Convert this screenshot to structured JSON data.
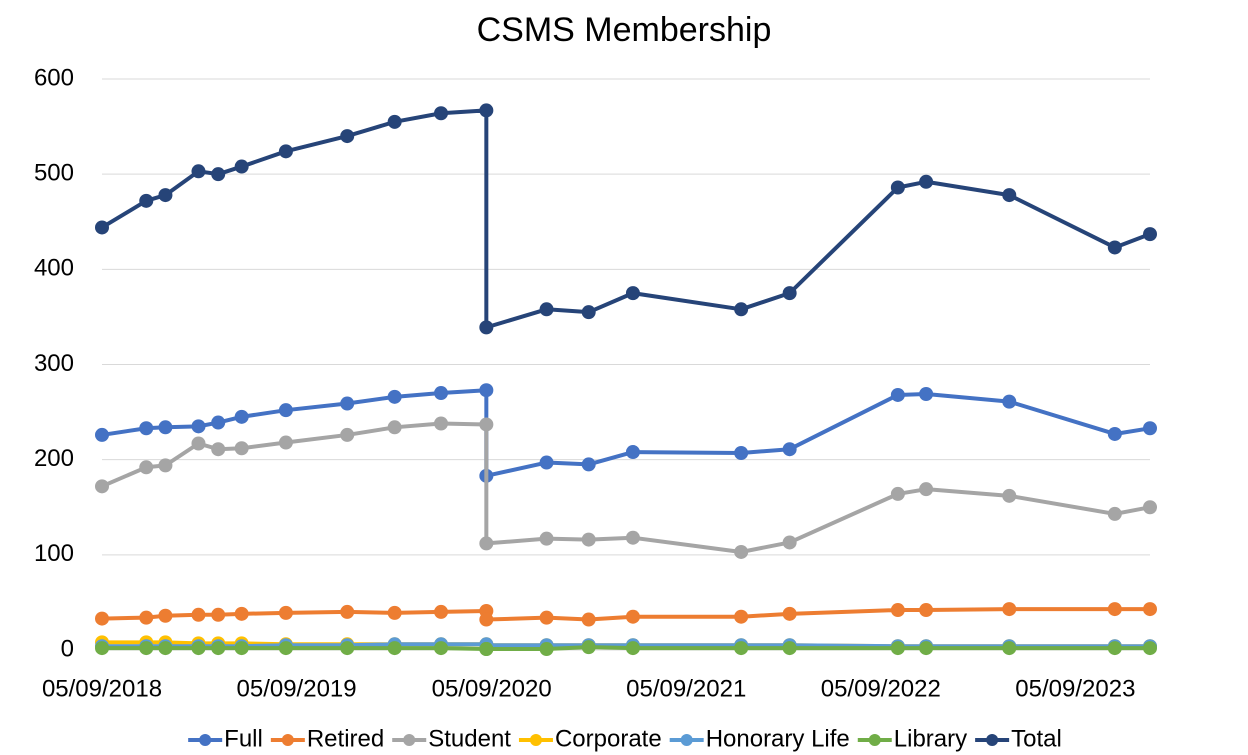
{
  "chart_data": {
    "type": "line",
    "title": "CSMS Membership",
    "x": [
      "2018-09-05",
      "2018-11-27",
      "2019-01-02",
      "2019-03-05",
      "2019-04-11",
      "2019-05-25",
      "2019-08-16",
      "2019-12-09",
      "2020-03-07",
      "2020-06-02",
      "2020-08-26",
      "2020-08-26",
      "2020-12-17",
      "2021-03-06",
      "2021-05-28",
      "2021-12-17",
      "2022-03-18",
      "2022-10-07",
      "2022-11-29",
      "2023-05-04",
      "2023-11-18",
      "2024-01-23"
    ],
    "series": [
      {
        "name": "Full",
        "color": "#4472c4",
        "values": [
          226,
          233,
          234,
          235,
          239,
          245,
          252,
          259,
          266,
          270,
          273,
          183,
          197,
          195,
          208,
          207,
          211,
          268,
          269,
          261,
          227,
          233
        ]
      },
      {
        "name": "Retired",
        "color": "#ed7d31",
        "values": [
          33,
          34,
          36,
          37,
          37,
          38,
          39,
          40,
          39,
          40,
          41,
          32,
          34,
          32,
          35,
          35,
          38,
          42,
          42,
          43,
          43,
          43
        ]
      },
      {
        "name": "Student",
        "color": "#a5a5a5",
        "values": [
          172,
          192,
          194,
          217,
          211,
          212,
          218,
          226,
          234,
          238,
          237,
          112,
          117,
          116,
          118,
          103,
          113,
          164,
          169,
          162,
          143,
          150
        ]
      },
      {
        "name": "Corporate",
        "color": "#ffc000",
        "values": [
          8,
          8,
          8,
          7,
          7,
          7,
          6,
          6,
          6,
          6,
          6,
          5,
          5,
          5,
          5,
          5,
          5,
          4,
          4,
          4,
          4,
          4
        ]
      },
      {
        "name": "Honorary Life",
        "color": "#5b9bd5",
        "values": [
          4,
          4,
          4,
          4,
          4,
          4,
          5,
          5,
          6,
          6,
          6,
          5,
          5,
          5,
          5,
          5,
          5,
          4,
          4,
          4,
          4,
          4
        ]
      },
      {
        "name": "Library",
        "color": "#70ad47",
        "values": [
          2,
          2,
          2,
          2,
          2,
          2,
          2,
          2,
          2,
          2,
          1,
          1,
          1,
          3,
          2,
          2,
          2,
          2,
          2,
          2,
          2,
          2
        ]
      },
      {
        "name": "Total",
        "color": "#264478",
        "values": [
          444,
          472,
          478,
          503,
          500,
          508,
          524,
          540,
          555,
          564,
          567,
          339,
          358,
          355,
          375,
          358,
          375,
          486,
          492,
          478,
          423,
          437
        ]
      }
    ],
    "xlim": [
      "2018-09-05",
      "2024-01-23"
    ],
    "xticks": [
      {
        "value": "2018-09-05",
        "label": "05/09/2018"
      },
      {
        "value": "2019-09-05",
        "label": "05/09/2019"
      },
      {
        "value": "2020-09-05",
        "label": "05/09/2020"
      },
      {
        "value": "2021-09-05",
        "label": "05/09/2021"
      },
      {
        "value": "2022-09-05",
        "label": "05/09/2022"
      },
      {
        "value": "2023-09-05",
        "label": "05/09/2023"
      }
    ],
    "ylim": [
      0,
      600
    ],
    "yticks": [
      0,
      100,
      200,
      300,
      400,
      500,
      600
    ],
    "grid": true,
    "legend": "bottom"
  }
}
